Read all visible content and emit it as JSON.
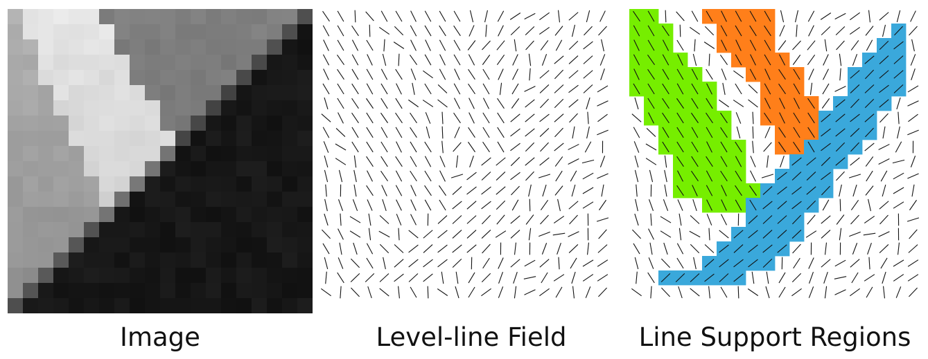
{
  "captions": {
    "image": "Image",
    "field": "Level-line Field",
    "regions": "Line Support Regions"
  },
  "colors": {
    "region_green": "#76ee00",
    "region_orange": "#ff7f1a",
    "region_blue": "#3aa8db",
    "segment": "#111111"
  }
}
